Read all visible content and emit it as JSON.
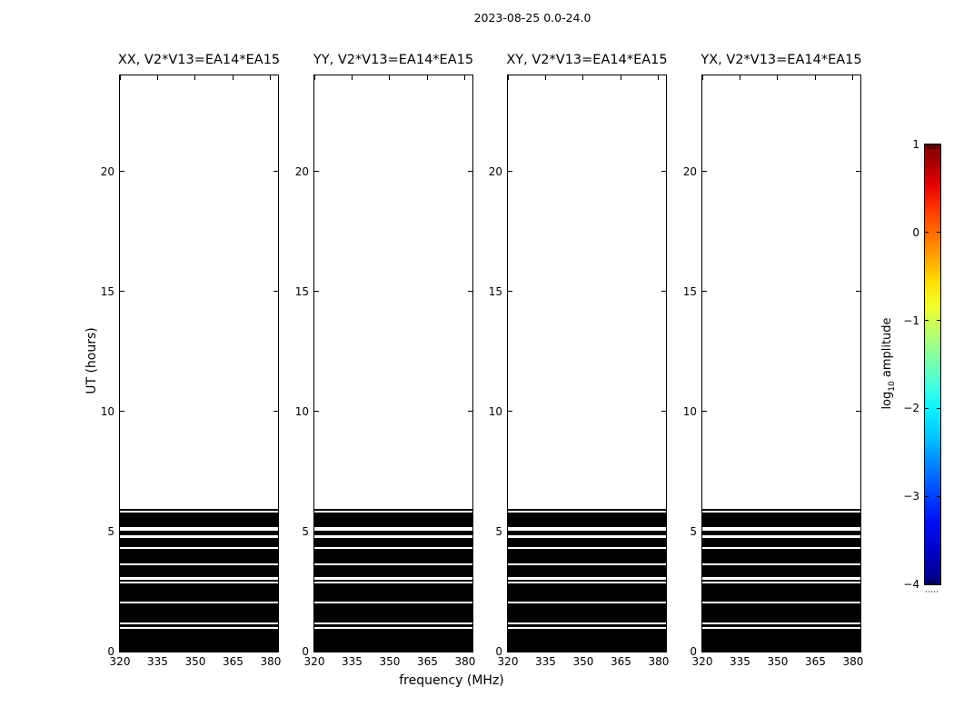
{
  "figure": {
    "title": "2023-08-25 0.0-24.0",
    "xlabel": "frequency (MHz)",
    "ylabel": "UT (hours)",
    "background": "#ffffff",
    "text_color": "#000000"
  },
  "panels": [
    {
      "id": "xx",
      "title": "XX, V2*V13=EA14*EA15"
    },
    {
      "id": "yy",
      "title": "YY, V2*V13=EA14*EA15"
    },
    {
      "id": "xy",
      "title": "XY, V2*V13=EA14*EA15"
    },
    {
      "id": "yx",
      "title": "YX, V2*V13=EA14*EA15"
    }
  ],
  "axes": {
    "x_tick_labels": [
      "320",
      "335",
      "350",
      "365",
      "380"
    ],
    "x_tick_values": [
      320,
      335,
      350,
      365,
      380
    ],
    "x_range": [
      320,
      382.9
    ],
    "y_tick_labels": [
      "0",
      "5",
      "10",
      "15",
      "20"
    ],
    "y_tick_values": [
      0,
      5,
      10,
      15,
      20
    ],
    "y_range": [
      0,
      24
    ]
  },
  "colorbar": {
    "label_prefix": "log",
    "label_sub": "10",
    "label_rest": " amplitude",
    "tick_labels": [
      "1",
      "0",
      "−1",
      "−2",
      "−3",
      "−4"
    ],
    "tick_values": [
      1,
      0,
      -1,
      -2,
      -3,
      -4
    ],
    "range": [
      -4,
      1
    ],
    "colormap": "jet",
    "top_color": "#7f0000",
    "bottom_color": "#00007f"
  },
  "chart_data": {
    "type": "heatmap",
    "title": "2023-08-25 0.0-24.0",
    "xlabel": "frequency (MHz)",
    "ylabel": "UT (hours)",
    "panel_titles": [
      "XX, V2*V13=EA14*EA15",
      "YY, V2*V13=EA14*EA15",
      "XY, V2*V13=EA14*EA15",
      "YX, V2*V13=EA14*EA15"
    ],
    "x_range_mhz": [
      320,
      382.9
    ],
    "y_range_hours": [
      0,
      24
    ],
    "colorbar": {
      "label": "log10 amplitude",
      "ticks": [
        1,
        0,
        -1,
        -2,
        -3,
        -4
      ],
      "colormap": "jet"
    },
    "value_color": "#000000",
    "data_present_hours": [
      0,
      5.96
    ],
    "black_bands_hours": [
      [
        0,
        0.94
      ],
      [
        1.03,
        1.12
      ],
      [
        1.22,
        2.0
      ],
      [
        2.1,
        2.83
      ],
      [
        2.9,
        2.98
      ],
      [
        3.1,
        3.58
      ],
      [
        3.69,
        4.26
      ],
      [
        4.36,
        4.74
      ],
      [
        4.83,
        5.05
      ],
      [
        5.17,
        5.79
      ],
      [
        5.87,
        5.96
      ]
    ],
    "note": "All four polarization panels show identical saturated (black) data spanning the full band from 0 to ~6.0 UT hours, broken by narrow white time gaps; no data above ~6.0 hours."
  }
}
